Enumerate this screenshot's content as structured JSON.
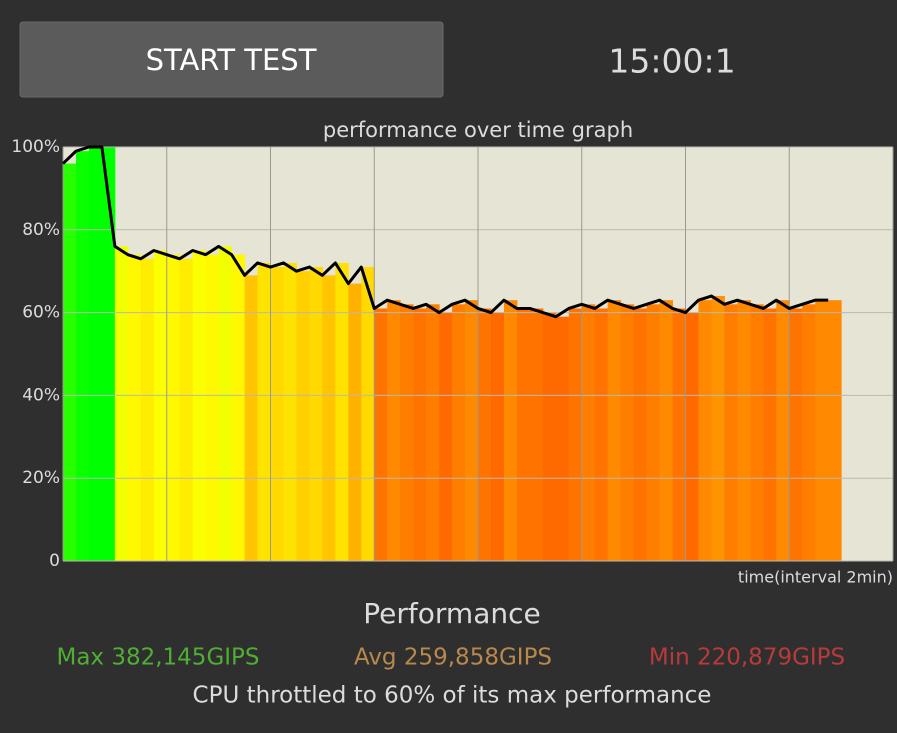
{
  "header": {
    "button": "START TEST",
    "timer": "15:00:1"
  },
  "chart_data": {
    "type": "area",
    "title": "performance over time graph",
    "x_label": "time(interval 2min)",
    "x": [
      0,
      0.25,
      0.5,
      0.75,
      1,
      1.25,
      1.5,
      1.75,
      2,
      2.25,
      2.5,
      2.75,
      3,
      3.25,
      3.5,
      3.75,
      4,
      4.25,
      4.5,
      4.75,
      5,
      5.25,
      5.5,
      5.75,
      6,
      6.25,
      6.5,
      6.75,
      7,
      7.25,
      7.5,
      7.75,
      8,
      8.25,
      8.5,
      8.75,
      9,
      9.25,
      9.5,
      9.75,
      10,
      10.25,
      10.5,
      10.75,
      11,
      11.25,
      11.5,
      11.75,
      12,
      12.25,
      12.5,
      12.75,
      13,
      13.25,
      13.5,
      13.75,
      14,
      14.25,
      14.5,
      14.75
    ],
    "series": [
      {
        "color": "#000000",
        "values": [
          96,
          99,
          100,
          100,
          76,
          74,
          73,
          75,
          74,
          73,
          75,
          74,
          76,
          74,
          69,
          72,
          71,
          72,
          70,
          71,
          69,
          72,
          67,
          71,
          61,
          63,
          62,
          61,
          62,
          60,
          62,
          63,
          61,
          60,
          63,
          61,
          61,
          60,
          59,
          61,
          62,
          61,
          63,
          62,
          61,
          62,
          63,
          61,
          60,
          63,
          64,
          62,
          63,
          62,
          61,
          63,
          61,
          62,
          63,
          63
        ]
      }
    ],
    "xlim": [
      0,
      16
    ],
    "xticks": [
      0,
      2,
      4,
      6,
      8,
      10,
      12,
      14,
      16
    ],
    "ylim": [
      0,
      100
    ],
    "yticks": [
      0,
      {
        "value": 20,
        "label": "20%"
      },
      {
        "value": 40,
        "label": "40%"
      },
      {
        "value": 60,
        "label": "60%"
      },
      {
        "value": 80,
        "label": "80%"
      },
      {
        "value": 100,
        "label": "100%"
      }
    ],
    "grid": true,
    "background": "#e6e5d5"
  },
  "summary": {
    "heading": "Performance",
    "max": "Max 382,145GIPS",
    "avg": "Avg 259,858GIPS",
    "min": "Min 220,879GIPS",
    "note": "CPU throttled to 60% of its max performance"
  }
}
